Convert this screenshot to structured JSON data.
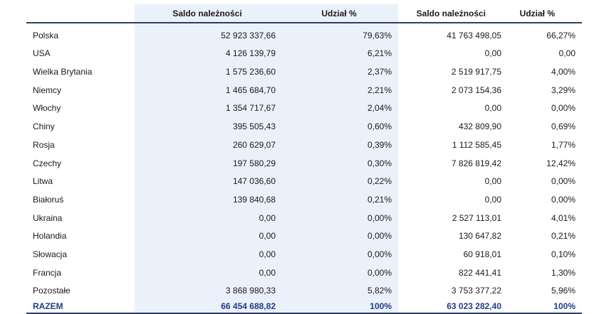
{
  "table": {
    "headers": {
      "country": "",
      "saldo_1": "Saldo należności",
      "udzial_1": "Udział %",
      "saldo_2": "Saldo należności",
      "udzial_2": "Udział %"
    },
    "rows": [
      {
        "country": "Polska",
        "saldo_1": "52 923 337,66",
        "udzial_1": "79,63%",
        "saldo_2": "41 763 498,05",
        "udzial_2": "66,27%"
      },
      {
        "country": "USA",
        "saldo_1": "4 126 139,79",
        "udzial_1": "6,21%",
        "saldo_2": "0,00",
        "udzial_2": "0,00"
      },
      {
        "country": "Wielka Brytania",
        "saldo_1": "1 575 236,60",
        "udzial_1": "2,37%",
        "saldo_2": "2 519 917,75",
        "udzial_2": "4,00%"
      },
      {
        "country": "Niemcy",
        "saldo_1": "1 465 684,70",
        "udzial_1": "2,21%",
        "saldo_2": "2 073 154,36",
        "udzial_2": "3,29%"
      },
      {
        "country": "Włochy",
        "saldo_1": "1 354 717,67",
        "udzial_1": "2,04%",
        "saldo_2": "0,00",
        "udzial_2": "0,00%"
      },
      {
        "country": "Chiny",
        "saldo_1": "395 505,43",
        "udzial_1": "0,60%",
        "saldo_2": "432 809,90",
        "udzial_2": "0,69%"
      },
      {
        "country": "Rosja",
        "saldo_1": "260 629,07",
        "udzial_1": "0,39%",
        "saldo_2": "1 112 585,45",
        "udzial_2": "1,77%"
      },
      {
        "country": "Czechy",
        "saldo_1": "197 580,29",
        "udzial_1": "0,30%",
        "saldo_2": "7 826 819,42",
        "udzial_2": "12,42%"
      },
      {
        "country": "Litwa",
        "saldo_1": "147 036,60",
        "udzial_1": "0,22%",
        "saldo_2": "0,00",
        "udzial_2": "0,00%"
      },
      {
        "country": "Białoruś",
        "saldo_1": "139 840,68",
        "udzial_1": "0,21%",
        "saldo_2": "0,00",
        "udzial_2": "0,00%"
      },
      {
        "country": "Ukraina",
        "saldo_1": "0,00",
        "udzial_1": "0,00%",
        "saldo_2": "2 527 113,01",
        "udzial_2": "4,01%"
      },
      {
        "country": "Holandia",
        "saldo_1": "0,00",
        "udzial_1": "0,00%",
        "saldo_2": "130 647,82",
        "udzial_2": "0,21%"
      },
      {
        "country": "Słowacja",
        "saldo_1": "0,00",
        "udzial_1": "0,00%",
        "saldo_2": "60 918,01",
        "udzial_2": "0,10%"
      },
      {
        "country": "Francja",
        "saldo_1": "0,00",
        "udzial_1": "0,00%",
        "saldo_2": "822 441,41",
        "udzial_2": "1,30%"
      },
      {
        "country": "Pozostałe",
        "saldo_1": "3 868 980,33",
        "udzial_1": "5,82%",
        "saldo_2": "3 753 377,22",
        "udzial_2": "5,96%"
      }
    ],
    "total": {
      "country": "RAZEM",
      "saldo_1": "66 454 688,82",
      "udzial_1": "100%",
      "saldo_2": "63 023 282,40",
      "udzial_2": "100%"
    }
  },
  "colors": {
    "shade": "#eaf1fb",
    "rule": "#2d3f63",
    "total_text": "#1f3d8a"
  }
}
